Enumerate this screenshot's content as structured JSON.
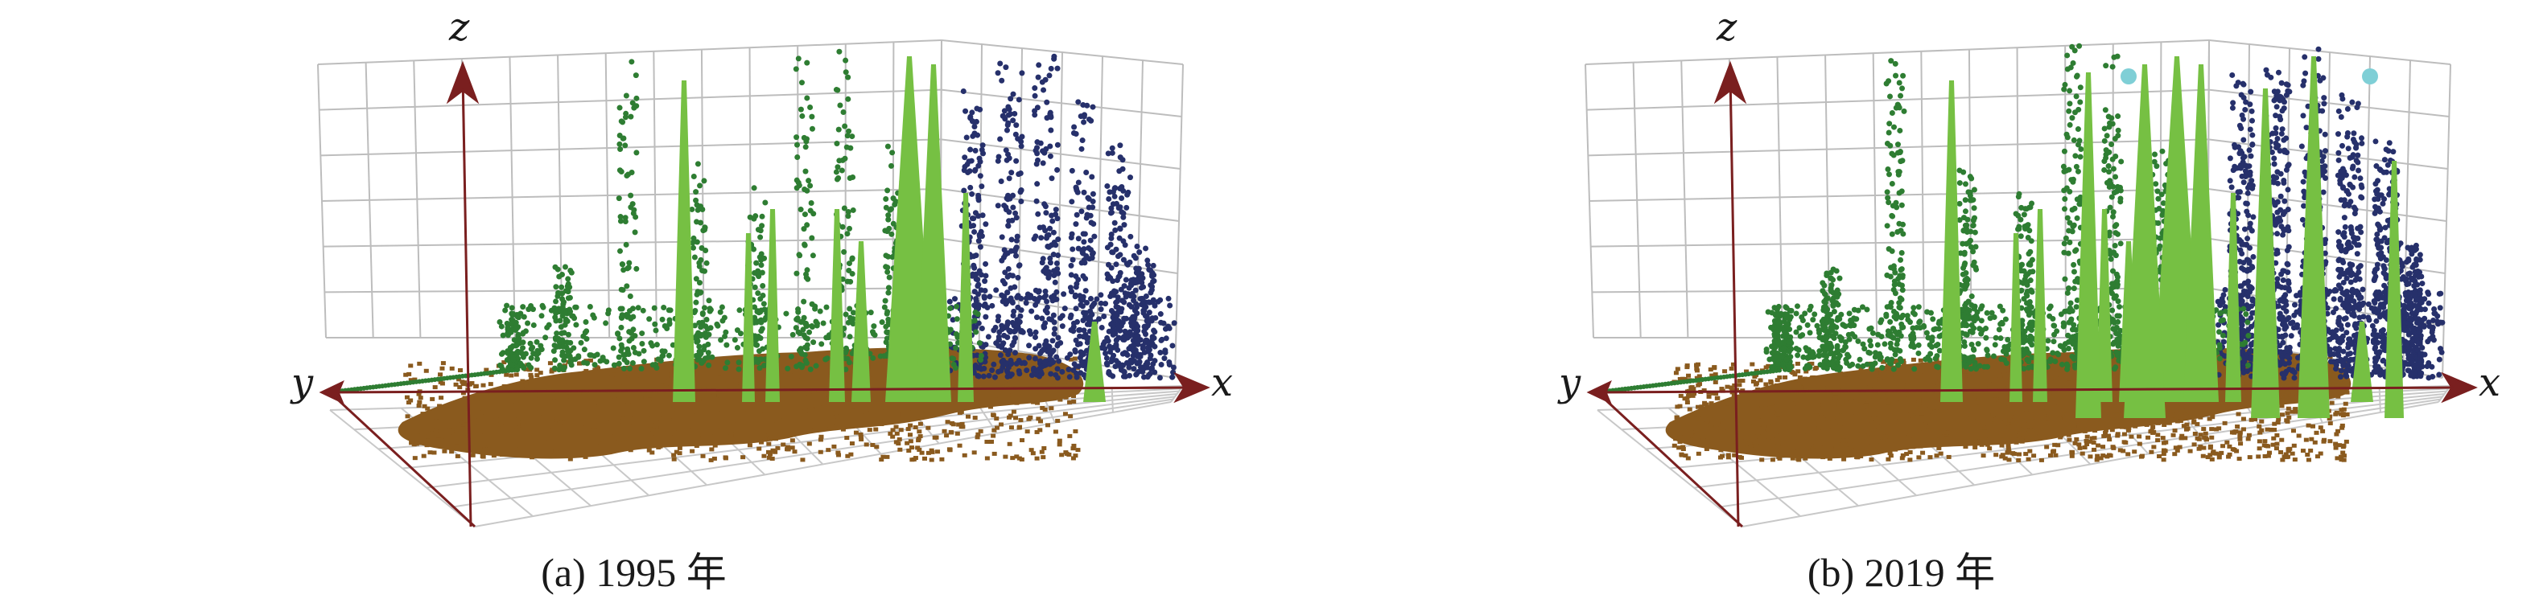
{
  "panels": [
    {
      "caption": "(a) 1995 年",
      "axes": {
        "x": "x",
        "y": "y",
        "z": "z"
      },
      "colors": {
        "building": "#8a5a1e",
        "green_low": "#2e7d32",
        "green_high": "#76c043",
        "navy": "#26306b",
        "cyan": "#7fcfd6"
      },
      "seed": 1995,
      "density": 1.0
    },
    {
      "caption": "(b) 2019 年",
      "axes": {
        "x": "x",
        "y": "y",
        "z": "z"
      },
      "colors": {
        "building": "#8a5a1e",
        "green_low": "#2e7d32",
        "green_high": "#76c043",
        "navy": "#26306b",
        "cyan": "#7fcfd6"
      },
      "seed": 2019,
      "density": 1.6
    }
  ]
}
